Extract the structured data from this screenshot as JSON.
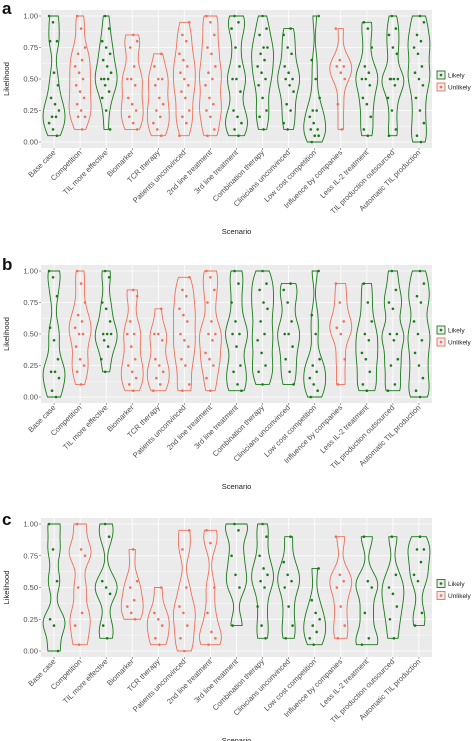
{
  "figure": {
    "scenarios": [
      "Base case",
      "Competition",
      "TIL more effective",
      "Biomarker",
      "TCR therapy",
      "Patients unconvinced",
      "2nd line treatment",
      "3rd line treatment",
      "Combination therapy",
      "Clinicians unconvinced",
      "Low cost competition",
      "Influence by companies",
      "Less IL-2 treatment",
      "TIL production outsourced",
      "Automatic TIL production"
    ],
    "legend": {
      "likely": "Likely",
      "unlikely": "Unlikely"
    },
    "colors": {
      "likely": "#1a7a1a",
      "unlikely": "#f0705a",
      "panel_bg": "#ebebeb",
      "grid": "#ffffff"
    }
  },
  "chart_data": [
    {
      "panel": "a",
      "type": "scatter",
      "xlabel": "Scenario",
      "ylabel": "Likelihood",
      "ylim": [
        0,
        1
      ],
      "yticks": [
        "0.00",
        "0.25",
        "0.50",
        "0.75",
        "1.00"
      ],
      "grid": true,
      "legend_position": "right",
      "series": [
        {
          "category": "Base case",
          "group": "Likely",
          "values": [
            1.0,
            0.95,
            0.8,
            0.8,
            0.55,
            0.45,
            0.35,
            0.3,
            0.25,
            0.2,
            0.2,
            0.15,
            0.1,
            0.05
          ]
        },
        {
          "category": "Competition",
          "group": "Unlikely",
          "values": [
            1.0,
            0.9,
            0.75,
            0.7,
            0.65,
            0.6,
            0.55,
            0.5,
            0.45,
            0.4,
            0.35,
            0.3,
            0.25,
            0.2,
            0.2,
            0.1
          ]
        },
        {
          "category": "TIL more effective",
          "group": "Likely",
          "values": [
            1.0,
            0.9,
            0.8,
            0.75,
            0.7,
            0.65,
            0.6,
            0.55,
            0.5,
            0.5,
            0.5,
            0.45,
            0.4,
            0.35,
            0.25,
            0.1
          ]
        },
        {
          "category": "Biomarker",
          "group": "Unlikely",
          "values": [
            0.85,
            0.8,
            0.75,
            0.6,
            0.5,
            0.5,
            0.45,
            0.35,
            0.3,
            0.25,
            0.2,
            0.15,
            0.1
          ]
        },
        {
          "category": "TCR therapy",
          "group": "Unlikely",
          "values": [
            0.7,
            0.6,
            0.5,
            0.5,
            0.45,
            0.35,
            0.3,
            0.25,
            0.2,
            0.15,
            0.1,
            0.05
          ]
        },
        {
          "category": "Patients unconvinced",
          "group": "Unlikely",
          "values": [
            0.95,
            0.85,
            0.8,
            0.7,
            0.65,
            0.6,
            0.55,
            0.5,
            0.45,
            0.4,
            0.35,
            0.25,
            0.2,
            0.15,
            0.05
          ]
        },
        {
          "category": "2nd line treatment",
          "group": "Unlikely",
          "values": [
            1.0,
            0.95,
            0.85,
            0.75,
            0.7,
            0.6,
            0.55,
            0.5,
            0.45,
            0.35,
            0.3,
            0.25,
            0.2,
            0.1,
            0.05
          ]
        },
        {
          "category": "3rd line treatment",
          "group": "Likely",
          "values": [
            1.0,
            0.95,
            0.9,
            0.75,
            0.6,
            0.5,
            0.5,
            0.4,
            0.25,
            0.2,
            0.15,
            0.1,
            0.05
          ]
        },
        {
          "category": "Combination therapy",
          "group": "Likely",
          "values": [
            1.0,
            0.9,
            0.85,
            0.75,
            0.75,
            0.7,
            0.65,
            0.6,
            0.55,
            0.5,
            0.45,
            0.35,
            0.25,
            0.2,
            0.1
          ]
        },
        {
          "category": "Clinicians unconvinced",
          "group": "Likely",
          "values": [
            0.9,
            0.85,
            0.75,
            0.7,
            0.6,
            0.55,
            0.5,
            0.5,
            0.45,
            0.4,
            0.3,
            0.25,
            0.15,
            0.1
          ]
        },
        {
          "category": "Low cost competition",
          "group": "Likely",
          "values": [
            1.0,
            0.65,
            0.5,
            0.35,
            0.25,
            0.25,
            0.2,
            0.15,
            0.1,
            0.1,
            0.05,
            0.05,
            0.0
          ]
        },
        {
          "category": "Influence by companies",
          "group": "Unlikely",
          "values": [
            0.9,
            0.65,
            0.6,
            0.6,
            0.55,
            0.5,
            0.3,
            0.1
          ]
        },
        {
          "category": "Less IL-2 treatment",
          "group": "Likely",
          "values": [
            0.95,
            0.9,
            0.75,
            0.6,
            0.55,
            0.5,
            0.5,
            0.45,
            0.35,
            0.3,
            0.2,
            0.1,
            0.05
          ]
        },
        {
          "category": "TIL production outsourced",
          "group": "Likely",
          "values": [
            1.0,
            0.9,
            0.85,
            0.75,
            0.7,
            0.5,
            0.5,
            0.5,
            0.5,
            0.45,
            0.35,
            0.25,
            0.1,
            0.05
          ]
        },
        {
          "category": "Automatic TIL production",
          "group": "Likely",
          "values": [
            1.0,
            0.95,
            0.85,
            0.8,
            0.75,
            0.7,
            0.6,
            0.55,
            0.5,
            0.45,
            0.35,
            0.25,
            0.15,
            0.05,
            0.0
          ]
        }
      ]
    },
    {
      "panel": "b",
      "type": "scatter",
      "xlabel": "Scenario",
      "ylabel": "Likelihood",
      "ylim": [
        0,
        1
      ],
      "yticks": [
        "0.00",
        "0.25",
        "0.50",
        "0.75",
        "1.00"
      ],
      "grid": true,
      "legend_position": "right",
      "series": [
        {
          "category": "Base case",
          "group": "Likely",
          "values": [
            1.0,
            0.95,
            0.8,
            0.55,
            0.45,
            0.3,
            0.2,
            0.2,
            0.15,
            0.05,
            0.0
          ]
        },
        {
          "category": "Competition",
          "group": "Unlikely",
          "values": [
            1.0,
            0.9,
            0.75,
            0.65,
            0.6,
            0.55,
            0.5,
            0.5,
            0.4,
            0.3,
            0.25,
            0.2,
            0.1
          ]
        },
        {
          "category": "TIL more effective",
          "group": "Likely",
          "values": [
            1.0,
            0.95,
            0.75,
            0.7,
            0.6,
            0.5,
            0.5,
            0.5,
            0.45,
            0.4,
            0.3,
            0.2
          ]
        },
        {
          "category": "Biomarker",
          "group": "Unlikely",
          "values": [
            0.85,
            0.8,
            0.6,
            0.5,
            0.5,
            0.4,
            0.3,
            0.25,
            0.2,
            0.15,
            0.1,
            0.05
          ]
        },
        {
          "category": "TCR therapy",
          "group": "Unlikely",
          "values": [
            0.7,
            0.5,
            0.5,
            0.45,
            0.3,
            0.25,
            0.2,
            0.15,
            0.1,
            0.05
          ]
        },
        {
          "category": "Patients unconvinced",
          "group": "Unlikely",
          "values": [
            0.95,
            0.85,
            0.8,
            0.7,
            0.65,
            0.6,
            0.5,
            0.45,
            0.4,
            0.3,
            0.25,
            0.1,
            0.05
          ]
        },
        {
          "category": "2nd line treatment",
          "group": "Unlikely",
          "values": [
            1.0,
            0.95,
            0.85,
            0.75,
            0.6,
            0.5,
            0.5,
            0.45,
            0.35,
            0.3,
            0.25,
            0.15,
            0.05
          ]
        },
        {
          "category": "3rd line treatment",
          "group": "Likely",
          "values": [
            1.0,
            0.9,
            0.75,
            0.6,
            0.5,
            0.5,
            0.4,
            0.25,
            0.2,
            0.1,
            0.05
          ]
        },
        {
          "category": "Combination therapy",
          "group": "Likely",
          "values": [
            1.0,
            0.9,
            0.85,
            0.75,
            0.7,
            0.6,
            0.5,
            0.45,
            0.35,
            0.25,
            0.2,
            0.1
          ]
        },
        {
          "category": "Clinicians unconvinced",
          "group": "Likely",
          "values": [
            0.9,
            0.85,
            0.75,
            0.6,
            0.5,
            0.5,
            0.4,
            0.3,
            0.2,
            0.1
          ]
        },
        {
          "category": "Low cost competition",
          "group": "Likely",
          "values": [
            1.0,
            0.65,
            0.5,
            0.3,
            0.25,
            0.2,
            0.15,
            0.1,
            0.05,
            0.0
          ]
        },
        {
          "category": "Influence by companies",
          "group": "Unlikely",
          "values": [
            0.9,
            0.75,
            0.6,
            0.55,
            0.5,
            0.3,
            0.1
          ]
        },
        {
          "category": "Less IL-2 treatment",
          "group": "Likely",
          "values": [
            0.9,
            0.75,
            0.6,
            0.5,
            0.45,
            0.35,
            0.3,
            0.2,
            0.1,
            0.05
          ]
        },
        {
          "category": "TIL production outsourced",
          "group": "Likely",
          "values": [
            1.0,
            0.85,
            0.75,
            0.7,
            0.5,
            0.5,
            0.45,
            0.3,
            0.25,
            0.1,
            0.05
          ]
        },
        {
          "category": "Automatic TIL production",
          "group": "Likely",
          "values": [
            1.0,
            0.9,
            0.8,
            0.75,
            0.6,
            0.5,
            0.45,
            0.35,
            0.25,
            0.15,
            0.05,
            0.0
          ]
        }
      ]
    },
    {
      "panel": "c",
      "type": "scatter",
      "xlabel": "Scenario",
      "ylabel": "Likelihood",
      "ylim": [
        0,
        1
      ],
      "yticks": [
        "0.00",
        "0.25",
        "0.50",
        "0.75",
        "1.00"
      ],
      "grid": true,
      "legend_position": "right",
      "series": [
        {
          "category": "Base case",
          "group": "Likely",
          "values": [
            1.0,
            0.8,
            0.55,
            0.25,
            0.2,
            0.0
          ]
        },
        {
          "category": "Competition",
          "group": "Unlikely",
          "values": [
            1.0,
            0.8,
            0.75,
            0.5,
            0.3,
            0.2,
            0.05
          ]
        },
        {
          "category": "TIL more effective",
          "group": "Likely",
          "values": [
            1.0,
            0.9,
            0.55,
            0.5,
            0.45,
            0.2,
            0.1
          ]
        },
        {
          "category": "Biomarker",
          "group": "Unlikely",
          "values": [
            0.8,
            0.55,
            0.5,
            0.4,
            0.35,
            0.3,
            0.25
          ]
        },
        {
          "category": "TCR therapy",
          "group": "Unlikely",
          "values": [
            0.5,
            0.3,
            0.25,
            0.2,
            0.1,
            0.05
          ]
        },
        {
          "category": "Patients unconvinced",
          "group": "Unlikely",
          "values": [
            0.95,
            0.8,
            0.5,
            0.35,
            0.3,
            0.2,
            0.1,
            0.0
          ]
        },
        {
          "category": "2nd line treatment",
          "group": "Unlikely",
          "values": [
            0.95,
            0.85,
            0.5,
            0.3,
            0.15,
            0.1,
            0.05
          ]
        },
        {
          "category": "3rd line treatment",
          "group": "Likely",
          "values": [
            1.0,
            0.95,
            0.75,
            0.6,
            0.5,
            0.2
          ]
        },
        {
          "category": "Combination therapy",
          "group": "Likely",
          "values": [
            1.0,
            0.9,
            0.75,
            0.65,
            0.6,
            0.55,
            0.5,
            0.35,
            0.2,
            0.1
          ]
        },
        {
          "category": "Clinicians unconvinced",
          "group": "Likely",
          "values": [
            0.9,
            0.7,
            0.6,
            0.55,
            0.5,
            0.35,
            0.2,
            0.1
          ]
        },
        {
          "category": "Low cost competition",
          "group": "Likely",
          "values": [
            0.65,
            0.4,
            0.3,
            0.25,
            0.2,
            0.15,
            0.1,
            0.05
          ]
        },
        {
          "category": "Influence by companies",
          "group": "Unlikely",
          "values": [
            0.9,
            0.6,
            0.55,
            0.5,
            0.35,
            0.2,
            0.1
          ]
        },
        {
          "category": "Less IL-2 treatment",
          "group": "Likely",
          "values": [
            0.9,
            0.55,
            0.5,
            0.3,
            0.1,
            0.05
          ]
        },
        {
          "category": "TIL production outsourced",
          "group": "Likely",
          "values": [
            0.9,
            0.6,
            0.5,
            0.45,
            0.35,
            0.25,
            0.1
          ]
        },
        {
          "category": "Automatic TIL production",
          "group": "Likely",
          "values": [
            0.9,
            0.8,
            0.8,
            0.7,
            0.6,
            0.55,
            0.3,
            0.2
          ]
        }
      ]
    }
  ]
}
